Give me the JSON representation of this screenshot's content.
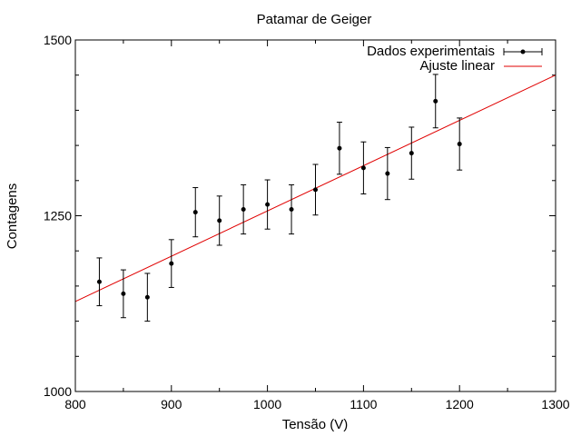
{
  "chart_data": {
    "type": "scatter",
    "title": "Patamar de Geiger",
    "xlabel": "Tensão (V)",
    "ylabel": "Contagens",
    "xlim": [
      800,
      1300
    ],
    "ylim": [
      1000,
      1500
    ],
    "xticks": [
      "800",
      "900",
      "1000",
      "1100",
      "1200",
      "1300"
    ],
    "yticks": [
      "1000",
      "1250",
      "1500"
    ],
    "legend_position": "top-right",
    "grid": false,
    "series": [
      {
        "name": "Dados experimentais",
        "kind": "errorbar",
        "color": "#000000",
        "x": [
          825,
          850,
          875,
          900,
          925,
          950,
          975,
          1000,
          1025,
          1050,
          1075,
          1100,
          1125,
          1150,
          1175,
          1200
        ],
        "y": [
          1156,
          1139,
          1134,
          1182,
          1255,
          1243,
          1259,
          1266,
          1259,
          1287,
          1346,
          1318,
          1310,
          1339,
          1413,
          1352
        ],
        "err": [
          34,
          34,
          34,
          34,
          35,
          35,
          35,
          35,
          35,
          36,
          37,
          37,
          37,
          37,
          38,
          37
        ]
      },
      {
        "name": "Ajuste linear",
        "kind": "line",
        "color": "#e00000",
        "x": [
          800,
          1300
        ],
        "y": [
          1128,
          1450
        ]
      }
    ]
  }
}
